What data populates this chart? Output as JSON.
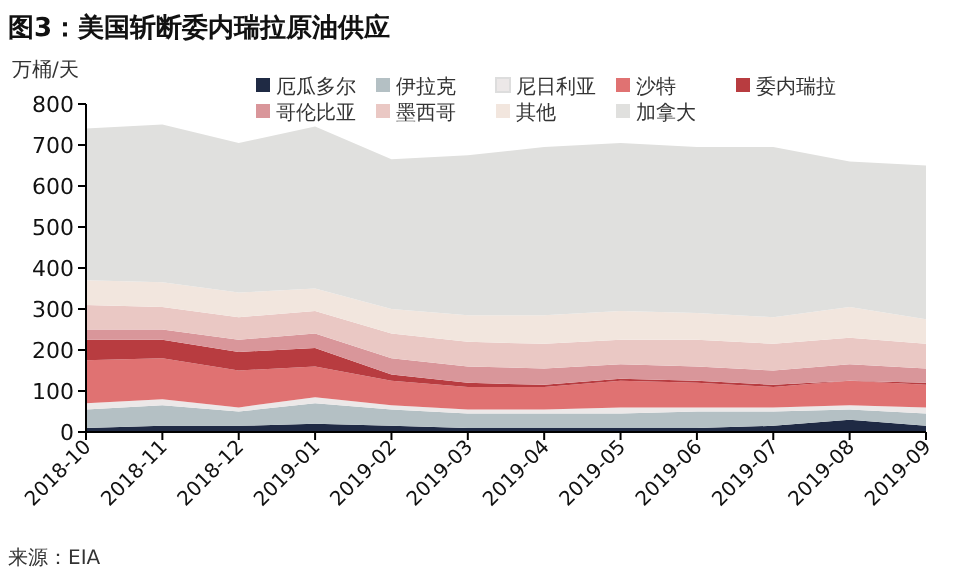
{
  "chart_data": {
    "type": "area",
    "stacked": true,
    "title": "图3：美国斩断委内瑞拉原油供应",
    "ylabel": "万桶/天",
    "categories": [
      "2018-10",
      "2018-11",
      "2018-12",
      "2019-01",
      "2019-02",
      "2019-03",
      "2019-04",
      "2019-05",
      "2019-06",
      "2019-07",
      "2019-08",
      "2019-09"
    ],
    "series": [
      {
        "name": "厄瓜多尔",
        "color": "#1f2a44",
        "values": [
          10,
          15,
          15,
          20,
          15,
          10,
          10,
          10,
          10,
          15,
          30,
          15
        ]
      },
      {
        "name": "伊拉克",
        "color": "#b4c0c4",
        "values": [
          45,
          50,
          35,
          50,
          40,
          35,
          35,
          35,
          40,
          35,
          25,
          30
        ]
      },
      {
        "name": "尼日利亚",
        "color": "#ece8e8",
        "values": [
          15,
          15,
          10,
          15,
          10,
          10,
          10,
          15,
          10,
          10,
          10,
          15
        ]
      },
      {
        "name": "沙特",
        "color": "#e07272",
        "values": [
          105,
          100,
          90,
          75,
          60,
          55,
          55,
          65,
          60,
          50,
          60,
          55
        ]
      },
      {
        "name": "委内瑞拉",
        "color": "#b83c40",
        "values": [
          50,
          45,
          45,
          45,
          15,
          10,
          5,
          5,
          5,
          5,
          0,
          5
        ]
      },
      {
        "name": "哥伦比亚",
        "color": "#d9969a",
        "values": [
          25,
          25,
          30,
          35,
          40,
          40,
          40,
          35,
          35,
          35,
          40,
          35
        ]
      },
      {
        "name": "墨西哥",
        "color": "#eac8c4",
        "values": [
          60,
          55,
          55,
          55,
          60,
          60,
          60,
          60,
          65,
          65,
          65,
          60
        ]
      },
      {
        "name": "其他",
        "color": "#f2e6de",
        "values": [
          60,
          60,
          60,
          55,
          60,
          65,
          70,
          70,
          65,
          65,
          75,
          60
        ]
      },
      {
        "name": "加拿大",
        "color": "#e0e0de",
        "values": [
          370,
          385,
          365,
          395,
          365,
          390,
          410,
          410,
          405,
          415,
          355,
          375
        ]
      }
    ],
    "ylim": [
      0,
      800
    ],
    "yticks": [
      0,
      100,
      200,
      300,
      400,
      500,
      600,
      700,
      800
    ],
    "legend": "top",
    "grid": false,
    "annotations": [
      "来源：EIA"
    ]
  }
}
